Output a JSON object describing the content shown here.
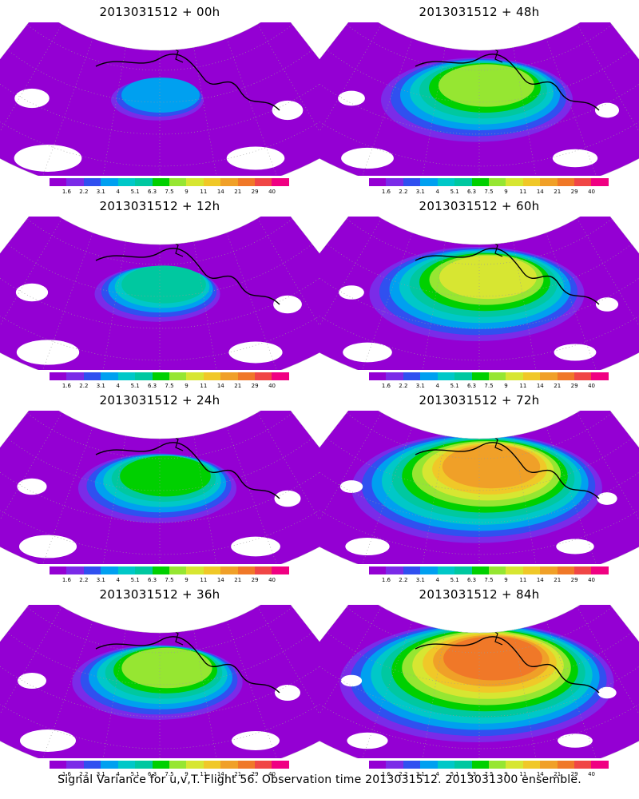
{
  "footer": "Signal Variance for u,v,T. Flight 56. Observation time 2013031512. 2013031300 ensemble.",
  "colorbar": {
    "ticks": [
      "1.6",
      "2.2",
      "3.1",
      "4",
      "5.1",
      "6.3",
      "7.5",
      "9",
      "11",
      "14",
      "21",
      "29",
      "40"
    ],
    "colors": [
      "#9400d3",
      "#7b2be8",
      "#3050f0",
      "#00a0f0",
      "#00c8c8",
      "#00c8a0",
      "#00d000",
      "#96e632",
      "#d7e632",
      "#f0c828",
      "#f0a028",
      "#f07828",
      "#f04646",
      "#f00082"
    ]
  },
  "panels": [
    {
      "title": "2013031512 + 00h",
      "intensity": 0.15
    },
    {
      "title": "2013031512 + 48h",
      "intensity": 0.6
    },
    {
      "title": "2013031512 + 12h",
      "intensity": 0.3
    },
    {
      "title": "2013031512 + 60h",
      "intensity": 0.7
    },
    {
      "title": "2013031512 + 24h",
      "intensity": 0.45
    },
    {
      "title": "2013031512 + 72h",
      "intensity": 0.85
    },
    {
      "title": "2013031512 + 36h",
      "intensity": 0.5
    },
    {
      "title": "2013031512 + 84h",
      "intensity": 0.95
    }
  ]
}
